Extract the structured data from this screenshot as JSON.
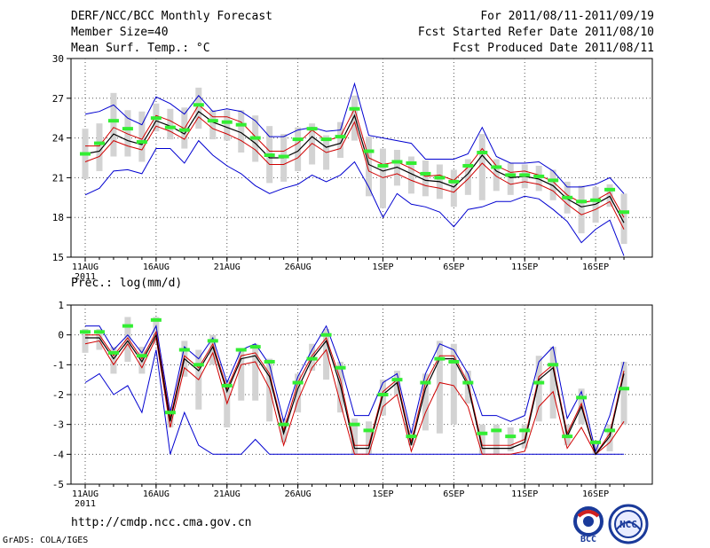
{
  "header": {
    "title": "DERF/NCC/BCC Monthly Forecast",
    "member_size": "Member Size=40",
    "variable": "Mean Surf. Temp.: °C",
    "period": "For 2011/08/11-2011/09/19",
    "refer_date": "Fcst Started Refer Date 2011/08/10",
    "produced_date": "Fcst Produced Date 2011/08/11"
  },
  "footer": {
    "url": "http://cmdp.ncc.cma.gov.cn",
    "grads": "GrADS: COLA/IGES",
    "logo_bcc": "BCC",
    "logo_ncc": "NCC"
  },
  "colors": {
    "box": "#d3d3d3",
    "ens_max_min": "#0000d0",
    "percentile": "#d00000",
    "mean": "#000000",
    "median_mark": "#33ee33"
  },
  "chart_data": [
    {
      "type": "line",
      "title": "Mean Surf. Temp.: °C",
      "ylim": [
        15,
        30
      ],
      "yticks": [
        15,
        18,
        21,
        24,
        27,
        30
      ],
      "x_tick_labels": [
        "11AUG",
        "16AUG",
        "21AUG",
        "26AUG",
        "1SEP",
        "6SEP",
        "11SEP",
        "16SEP"
      ],
      "x_first_year": "2011",
      "series": [
        {
          "name": "ensemble max",
          "values": [
            25.8,
            26.0,
            26.5,
            25.5,
            25.0,
            27.1,
            26.6,
            25.8,
            27.2,
            26.0,
            26.2,
            26.0,
            25.3,
            24.1,
            24.1,
            24.6,
            24.8,
            24.5,
            24.6,
            28.1,
            24.2,
            24.0,
            23.8,
            23.6,
            22.4,
            22.4,
            22.4,
            22.8,
            24.8,
            22.6,
            22.1,
            22.1,
            22.2,
            21.5,
            20.3,
            20.3,
            20.5,
            21.0,
            19.8
          ]
        },
        {
          "name": "upper percentile",
          "values": [
            23.4,
            23.4,
            24.8,
            24.3,
            23.9,
            25.7,
            25.3,
            24.7,
            26.5,
            25.6,
            25.6,
            25.2,
            24.1,
            23.0,
            23.0,
            23.6,
            24.6,
            23.8,
            24.1,
            26.2,
            22.5,
            22.0,
            22.2,
            21.7,
            21.1,
            21.2,
            20.8,
            21.8,
            23.2,
            21.9,
            21.4,
            21.5,
            21.2,
            20.7,
            19.7,
            19.1,
            19.3,
            19.9,
            18.0
          ]
        },
        {
          "name": "ensemble mean",
          "values": [
            22.8,
            23.0,
            24.3,
            23.8,
            23.5,
            25.3,
            24.9,
            24.3,
            26.0,
            25.2,
            24.8,
            24.4,
            23.6,
            22.5,
            22.5,
            23.0,
            24.1,
            23.3,
            23.6,
            25.7,
            22.0,
            21.5,
            21.8,
            21.3,
            20.8,
            20.7,
            20.3,
            21.3,
            22.7,
            21.5,
            21.0,
            21.1,
            20.9,
            20.4,
            19.4,
            18.8,
            19.0,
            19.6,
            17.6
          ]
        },
        {
          "name": "lower percentile",
          "values": [
            22.2,
            22.6,
            23.8,
            23.4,
            23.1,
            24.9,
            24.5,
            23.9,
            25.6,
            24.7,
            24.3,
            23.8,
            23.1,
            22.0,
            22.0,
            22.5,
            23.6,
            22.9,
            23.2,
            25.2,
            21.5,
            21.0,
            21.3,
            20.8,
            20.4,
            20.2,
            19.9,
            20.9,
            22.1,
            21.1,
            20.5,
            20.7,
            20.5,
            20.0,
            19.0,
            18.2,
            18.6,
            19.2,
            17.1
          ]
        },
        {
          "name": "ensemble min",
          "values": [
            19.7,
            20.2,
            21.5,
            21.6,
            21.3,
            23.2,
            23.2,
            22.1,
            23.8,
            22.7,
            21.9,
            21.3,
            20.4,
            19.8,
            20.2,
            20.5,
            21.2,
            20.7,
            21.2,
            22.2,
            20.3,
            18.0,
            19.8,
            19.0,
            18.8,
            18.4,
            17.3,
            18.6,
            18.8,
            19.2,
            19.2,
            19.6,
            19.4,
            18.6,
            17.7,
            16.1,
            17.1,
            17.8,
            15.1
          ]
        },
        {
          "name": "box top",
          "values": [
            24.7,
            25.1,
            27.4,
            26.1,
            26.0,
            26.6,
            26.2,
            26.3,
            27.8,
            26.1,
            26.1,
            26.1,
            25.7,
            24.9,
            24.3,
            24.8,
            25.1,
            24.2,
            25.2,
            27.2,
            24.1,
            23.2,
            23.1,
            22.6,
            22.3,
            22.0,
            21.6,
            22.4,
            24.3,
            22.4,
            22.1,
            22.0,
            21.9,
            21.6,
            20.7,
            20.4,
            20.3,
            20.5,
            19.8
          ]
        },
        {
          "name": "box bottom",
          "values": [
            20.9,
            21.5,
            22.6,
            22.6,
            22.2,
            24.5,
            23.9,
            23.2,
            24.7,
            23.9,
            23.8,
            22.9,
            22.2,
            20.6,
            20.7,
            21.5,
            22.0,
            21.6,
            22.5,
            23.8,
            19.6,
            18.7,
            20.4,
            19.8,
            19.6,
            19.4,
            18.8,
            19.7,
            19.3,
            20.0,
            19.7,
            20.2,
            20.0,
            19.3,
            18.3,
            16.8,
            17.6,
            18.8,
            16.0
          ]
        },
        {
          "name": "ensemble median",
          "values": [
            22.8,
            23.6,
            25.3,
            24.7,
            23.7,
            25.5,
            24.8,
            24.6,
            26.5,
            25.3,
            25.2,
            25.0,
            24.0,
            22.7,
            22.6,
            23.9,
            24.7,
            23.9,
            24.1,
            26.2,
            23.0,
            21.9,
            22.2,
            22.1,
            21.3,
            21.0,
            20.7,
            21.9,
            22.9,
            21.8,
            21.2,
            21.2,
            21.1,
            20.8,
            19.5,
            19.2,
            19.3,
            20.1,
            18.4
          ]
        }
      ]
    },
    {
      "type": "line",
      "title": "Prec.: log(mm/d)",
      "ylim": [
        -5,
        1
      ],
      "yticks": [
        -5,
        -4,
        -3,
        -2,
        -1,
        0,
        1
      ],
      "x_tick_labels": [
        "11AUG",
        "16AUG",
        "21AUG",
        "26AUG",
        "1SEP",
        "6SEP",
        "11SEP",
        "16SEP"
      ],
      "x_first_year": "2011",
      "series": [
        {
          "name": "ensemble max",
          "values": [
            0.3,
            0.3,
            -0.5,
            0.0,
            -0.6,
            0.3,
            -2.6,
            -0.4,
            -0.8,
            -0.1,
            -1.6,
            -0.5,
            -0.3,
            -1.0,
            -2.9,
            -1.4,
            -0.5,
            0.3,
            -1.0,
            -2.7,
            -2.7,
            -1.6,
            -1.3,
            -3.3,
            -1.3,
            -0.3,
            -0.5,
            -1.3,
            -2.7,
            -2.7,
            -2.9,
            -2.7,
            -0.9,
            -0.4,
            -2.8,
            -1.9,
            -3.9,
            -2.7,
            -0.9
          ]
        },
        {
          "name": "upper percentile",
          "values": [
            0.0,
            0.0,
            -0.7,
            -0.1,
            -0.8,
            0.1,
            -2.8,
            -0.7,
            -1.1,
            -0.3,
            -1.8,
            -0.7,
            -0.6,
            -1.3,
            -3.2,
            -1.6,
            -0.7,
            -0.1,
            -1.5,
            -3.7,
            -3.7,
            -1.9,
            -1.5,
            -3.6,
            -1.6,
            -0.7,
            -0.7,
            -1.6,
            -3.7,
            -3.7,
            -3.7,
            -3.5,
            -1.4,
            -1.0,
            -3.3,
            -2.3,
            -4.0,
            -3.3,
            -1.2
          ]
        },
        {
          "name": "ensemble mean",
          "values": [
            -0.1,
            -0.1,
            -0.8,
            -0.2,
            -0.9,
            0.0,
            -2.9,
            -0.8,
            -1.2,
            -0.4,
            -1.9,
            -0.8,
            -0.7,
            -1.4,
            -3.3,
            -1.8,
            -0.8,
            -0.2,
            -1.7,
            -3.8,
            -3.8,
            -2.0,
            -1.6,
            -3.7,
            -1.8,
            -0.8,
            -0.8,
            -1.7,
            -3.8,
            -3.8,
            -3.8,
            -3.6,
            -1.5,
            -1.1,
            -3.4,
            -2.4,
            -4.0,
            -3.4,
            -1.3
          ]
        },
        {
          "name": "lower percentile",
          "values": [
            -0.3,
            -0.2,
            -1.0,
            -0.3,
            -1.1,
            -0.1,
            -3.1,
            -1.1,
            -1.5,
            -0.6,
            -2.3,
            -1.0,
            -0.9,
            -1.8,
            -3.7,
            -2.2,
            -1.1,
            -0.5,
            -2.3,
            -4.0,
            -4.0,
            -2.4,
            -2.0,
            -3.9,
            -2.6,
            -1.6,
            -1.7,
            -2.4,
            -4.0,
            -4.0,
            -4.0,
            -3.9,
            -2.4,
            -1.9,
            -3.8,
            -3.1,
            -4.0,
            -3.6,
            -2.9
          ]
        },
        {
          "name": "ensemble min",
          "values": [
            -1.6,
            -1.3,
            -2.0,
            -1.7,
            -2.6,
            -0.5,
            -4.0,
            -2.6,
            -3.7,
            -4.0,
            -4.0,
            -4.0,
            -3.5,
            -4.0,
            -4.0,
            -4.0,
            -4.0,
            -4.0,
            -4.0,
            -4.0,
            -4.0,
            -4.0,
            -4.0,
            -4.0,
            -4.0,
            -4.0,
            -4.0,
            -4.0,
            -4.0,
            -4.0,
            -4.0,
            -4.0,
            -4.0,
            -4.0,
            -4.0,
            -4.0,
            -4.0,
            -4.0,
            -4.0
          ]
        },
        {
          "name": "box top",
          "values": [
            0.2,
            0.2,
            -0.4,
            0.6,
            -0.4,
            0.6,
            -2.4,
            -0.2,
            -0.5,
            0.0,
            -1.5,
            -0.5,
            -0.3,
            -0.8,
            -2.8,
            -1.3,
            -0.3,
            0.2,
            -0.9,
            -2.8,
            -2.9,
            -1.5,
            -1.2,
            -3.2,
            -1.3,
            -0.2,
            -0.3,
            -1.2,
            -3.0,
            -3.0,
            -3.1,
            -3.0,
            -0.7,
            -0.4,
            -3.0,
            -1.8,
            -3.6,
            -3.0,
            -0.9
          ]
        },
        {
          "name": "box bottom",
          "values": [
            -0.6,
            -0.5,
            -1.3,
            -0.9,
            -1.3,
            -0.3,
            -3.1,
            -1.4,
            -2.5,
            -1.0,
            -3.1,
            -2.2,
            -2.2,
            -2.9,
            -3.6,
            -2.6,
            -1.2,
            -1.5,
            -2.6,
            -4.0,
            -4.0,
            -2.7,
            -2.0,
            -3.7,
            -3.2,
            -3.3,
            -3.0,
            -2.3,
            -4.0,
            -4.0,
            -3.9,
            -3.8,
            -2.9,
            -2.8,
            -3.7,
            -3.0,
            -4.0,
            -3.9,
            -3.0
          ]
        },
        {
          "name": "ensemble median",
          "values": [
            0.1,
            0.1,
            -0.6,
            0.3,
            -0.7,
            0.5,
            -2.6,
            -0.5,
            -1.0,
            -0.2,
            -1.7,
            -0.5,
            -0.4,
            -0.9,
            -3.0,
            -1.6,
            -0.8,
            0.0,
            -1.1,
            -3.0,
            -3.2,
            -2.0,
            -1.5,
            -3.4,
            -1.6,
            -0.8,
            -0.9,
            -1.6,
            -3.3,
            -3.2,
            -3.4,
            -3.2,
            -1.6,
            -1.0,
            -3.4,
            -2.1,
            -3.6,
            -3.2,
            -1.8
          ]
        }
      ]
    }
  ]
}
